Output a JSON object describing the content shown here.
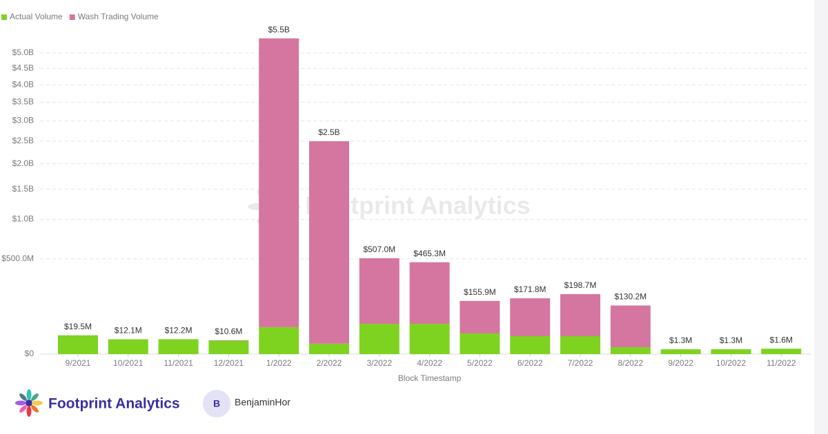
{
  "chart_data": {
    "type": "stacked-bar",
    "y_scale": "sqrt",
    "x_label": "Block Timestamp",
    "watermark": "Footprint Analytics",
    "legend_position": "top-left",
    "grid": true,
    "categories": [
      "9/2021",
      "10/2021",
      "11/2021",
      "12/2021",
      "1/2022",
      "2/2022",
      "3/2022",
      "4/2022",
      "5/2022",
      "6/2022",
      "7/2022",
      "8/2022",
      "9/2022",
      "10/2022",
      "11/2022"
    ],
    "series": [
      {
        "name": "Actual Volume",
        "color": "#7ed321",
        "values": [
          19500000,
          12100000,
          12200000,
          10000000,
          40000000,
          6000000,
          50700000,
          50700000,
          23600000,
          17700000,
          17700000,
          2600000,
          1300000,
          1300000,
          1600000
        ]
      },
      {
        "name": "Wash Trading Volume",
        "color": "#d576a0",
        "values": [
          0,
          0,
          0,
          600000,
          5460000000,
          2494000000,
          456300000,
          414600000,
          132300000,
          154100000,
          181000000,
          127600000,
          0,
          0,
          0
        ]
      }
    ],
    "totals": [
      19500000,
      12100000,
      12200000,
      10600000,
      5500000000,
      2500000000,
      507000000,
      465300000,
      155900000,
      171800000,
      198700000,
      130200000,
      1300000,
      1300000,
      1600000
    ],
    "total_labels": [
      "$19.5M",
      "$12.1M",
      "$12.2M",
      "$10.6M",
      "$5.5B",
      "$2.5B",
      "$507.0M",
      "$465.3M",
      "$155.9M",
      "$171.8M",
      "$198.7M",
      "$130.2M",
      "$1.3M",
      "$1.3M",
      "$1.6M"
    ],
    "ylim": [
      0,
      6000000000
    ],
    "yticks": [
      {
        "value": 0,
        "label": "$0"
      },
      {
        "value": 500000000,
        "label": "$500.0M"
      },
      {
        "value": 1000000000,
        "label": "$1.0B"
      },
      {
        "value": 1500000000,
        "label": "$1.5B"
      },
      {
        "value": 2000000000,
        "label": "$2.0B"
      },
      {
        "value": 2500000000,
        "label": "$2.5B"
      },
      {
        "value": 3000000000,
        "label": "$3.0B"
      },
      {
        "value": 3500000000,
        "label": "$3.5B"
      },
      {
        "value": 4000000000,
        "label": "$4.0B"
      },
      {
        "value": 4500000000,
        "label": "$4.5B"
      },
      {
        "value": 5000000000,
        "label": "$5.0B"
      }
    ]
  },
  "footer": {
    "brand": "Footprint Analytics",
    "avatar": "B",
    "user": "BenjaminHor"
  }
}
